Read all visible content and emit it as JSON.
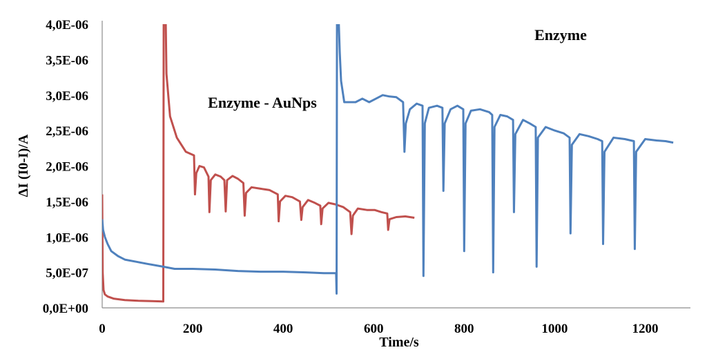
{
  "chart_data": {
    "type": "line",
    "title": "",
    "xlabel": "Time/s",
    "ylabel": "ΔI (I0-I)/A",
    "xlim": [
      0,
      1300
    ],
    "ylim": [
      0,
      4e-06
    ],
    "x_ticks": [
      "0",
      "200",
      "400",
      "600",
      "800",
      "1000",
      "1200"
    ],
    "y_ticks": [
      "0,0E+00",
      "5,0E-07",
      "1,0E-06",
      "1,5E-06",
      "2,0E-06",
      "2,5E-06",
      "3,0E-06",
      "3,5E-06",
      "4,0E-06"
    ],
    "grid": false,
    "legend": "none",
    "annotations": [
      {
        "text": "Enzyme - AuNps",
        "x": 450,
        "y": 2.95e-06
      },
      {
        "text": "Enzyme",
        "x": 1020,
        "y": 3.7e-06
      }
    ],
    "series": [
      {
        "color": "#c0504d",
        "points": [
          [
            0,
            1.6e-06
          ],
          [
            1,
            5e-07
          ],
          [
            3,
            2.5e-07
          ],
          [
            6,
            1.9e-07
          ],
          [
            12,
            1.6e-07
          ],
          [
            25,
            1.3e-07
          ],
          [
            50,
            1.1e-07
          ],
          [
            80,
            1e-07
          ],
          [
            110,
            9.5e-08
          ],
          [
            135,
            9e-08
          ],
          [
            136,
            4.2e-06
          ],
          [
            137,
            4.2e-06
          ],
          [
            140,
            4.2e-06
          ],
          [
            142,
            3.3e-06
          ],
          [
            150,
            2.7e-06
          ],
          [
            165,
            2.4e-06
          ],
          [
            185,
            2.2e-06
          ],
          [
            203,
            2.15e-06
          ],
          [
            205,
            1.6e-06
          ],
          [
            208,
            1.9e-06
          ],
          [
            215,
            2e-06
          ],
          [
            225,
            1.98e-06
          ],
          [
            235,
            1.85e-06
          ],
          [
            237,
            1.35e-06
          ],
          [
            240,
            1.8e-06
          ],
          [
            250,
            1.88e-06
          ],
          [
            262,
            1.85e-06
          ],
          [
            270,
            1.8e-06
          ],
          [
            273,
            1.36e-06
          ],
          [
            276,
            1.8e-06
          ],
          [
            288,
            1.86e-06
          ],
          [
            300,
            1.82e-06
          ],
          [
            312,
            1.76e-06
          ],
          [
            315,
            1.3e-06
          ],
          [
            318,
            1.62e-06
          ],
          [
            330,
            1.7e-06
          ],
          [
            350,
            1.68e-06
          ],
          [
            370,
            1.66e-06
          ],
          [
            388,
            1.6e-06
          ],
          [
            390,
            1.22e-06
          ],
          [
            393,
            1.5e-06
          ],
          [
            405,
            1.58e-06
          ],
          [
            420,
            1.56e-06
          ],
          [
            437,
            1.5e-06
          ],
          [
            440,
            1.24e-06
          ],
          [
            443,
            1.42e-06
          ],
          [
            455,
            1.52e-06
          ],
          [
            470,
            1.48e-06
          ],
          [
            482,
            1.44e-06
          ],
          [
            484,
            1.18e-06
          ],
          [
            487,
            1.4e-06
          ],
          [
            500,
            1.48e-06
          ],
          [
            515,
            1.46e-06
          ],
          [
            533,
            1.42e-06
          ],
          [
            548,
            1.35e-06
          ],
          [
            551,
            1.04e-06
          ],
          [
            554,
            1.3e-06
          ],
          [
            565,
            1.4e-06
          ],
          [
            585,
            1.38e-06
          ],
          [
            602,
            1.38e-06
          ],
          [
            617,
            1.35e-06
          ],
          [
            630,
            1.33e-06
          ],
          [
            632,
            1.1e-06
          ],
          [
            635,
            1.25e-06
          ],
          [
            650,
            1.28e-06
          ],
          [
            670,
            1.29e-06
          ],
          [
            690,
            1.27e-06
          ]
        ]
      },
      {
        "color": "#4f81bd",
        "points": [
          [
            0,
            1.25e-06
          ],
          [
            2,
            1.1e-06
          ],
          [
            6,
            1e-06
          ],
          [
            12,
            9e-07
          ],
          [
            20,
            8e-07
          ],
          [
            35,
            7.3e-07
          ],
          [
            50,
            6.8e-07
          ],
          [
            75,
            6.5e-07
          ],
          [
            100,
            6.2e-07
          ],
          [
            135,
            5.8e-07
          ],
          [
            160,
            5.5e-07
          ],
          [
            200,
            5.5e-07
          ],
          [
            250,
            5.4e-07
          ],
          [
            300,
            5.2e-07
          ],
          [
            350,
            5.1e-07
          ],
          [
            400,
            5.1e-07
          ],
          [
            450,
            5e-07
          ],
          [
            490,
            4.9e-07
          ],
          [
            517,
            4.9e-07
          ],
          [
            518,
            2e-07
          ],
          [
            519,
            4.2e-06
          ],
          [
            520,
            4.2e-06
          ],
          [
            522,
            4.2e-06
          ],
          [
            525,
            3.6e-06
          ],
          [
            528,
            3.2e-06
          ],
          [
            535,
            2.9e-06
          ],
          [
            550,
            2.9e-06
          ],
          [
            560,
            2.9e-06
          ],
          [
            575,
            2.95e-06
          ],
          [
            590,
            2.9e-06
          ],
          [
            605,
            2.95e-06
          ],
          [
            620,
            3e-06
          ],
          [
            635,
            2.98e-06
          ],
          [
            650,
            2.97e-06
          ],
          [
            665,
            2.9e-06
          ],
          [
            668,
            2.2e-06
          ],
          [
            671,
            2.6e-06
          ],
          [
            680,
            2.8e-06
          ],
          [
            695,
            2.88e-06
          ],
          [
            708,
            2.85e-06
          ],
          [
            710,
            4.5e-07
          ],
          [
            713,
            2.6e-06
          ],
          [
            722,
            2.82e-06
          ],
          [
            740,
            2.85e-06
          ],
          [
            752,
            2.82e-06
          ],
          [
            754,
            1.65e-06
          ],
          [
            757,
            2.6e-06
          ],
          [
            770,
            2.8e-06
          ],
          [
            785,
            2.85e-06
          ],
          [
            798,
            2.8e-06
          ],
          [
            800,
            8e-07
          ],
          [
            803,
            2.6e-06
          ],
          [
            815,
            2.78e-06
          ],
          [
            835,
            2.8e-06
          ],
          [
            855,
            2.76e-06
          ],
          [
            862,
            2.72e-06
          ],
          [
            864,
            5e-07
          ],
          [
            867,
            2.55e-06
          ],
          [
            880,
            2.72e-06
          ],
          [
            895,
            2.7e-06
          ],
          [
            908,
            2.65e-06
          ],
          [
            910,
            1.35e-06
          ],
          [
            913,
            2.45e-06
          ],
          [
            930,
            2.65e-06
          ],
          [
            945,
            2.6e-06
          ],
          [
            958,
            2.55e-06
          ],
          [
            960,
            5.8e-07
          ],
          [
            963,
            2.4e-06
          ],
          [
            980,
            2.55e-06
          ],
          [
            1000,
            2.5e-06
          ],
          [
            1020,
            2.46e-06
          ],
          [
            1033,
            2.4e-06
          ],
          [
            1035,
            1.05e-06
          ],
          [
            1038,
            2.3e-06
          ],
          [
            1055,
            2.45e-06
          ],
          [
            1075,
            2.42e-06
          ],
          [
            1095,
            2.38e-06
          ],
          [
            1105,
            2.35e-06
          ],
          [
            1107,
            9e-07
          ],
          [
            1110,
            2.2e-06
          ],
          [
            1130,
            2.4e-06
          ],
          [
            1155,
            2.38e-06
          ],
          [
            1175,
            2.35e-06
          ],
          [
            1177,
            8.3e-07
          ],
          [
            1180,
            2.2e-06
          ],
          [
            1200,
            2.38e-06
          ],
          [
            1225,
            2.36e-06
          ],
          [
            1245,
            2.35e-06
          ],
          [
            1262,
            2.33e-06
          ]
        ]
      }
    ]
  }
}
